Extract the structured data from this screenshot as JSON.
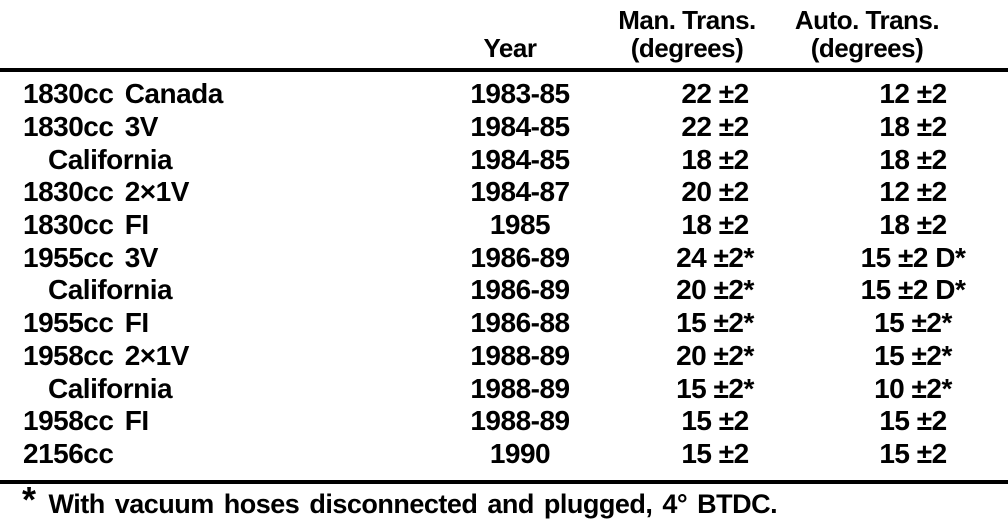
{
  "colors": {
    "text": "#000000",
    "background": "#ffffff",
    "rule": "#000000"
  },
  "table": {
    "headers": {
      "model": "",
      "year": "Year",
      "man_trans_line1": "Man. Trans.",
      "man_trans_line2": "(degrees)",
      "auto_trans_line1": "Auto. Trans.",
      "auto_trans_line2": "(degrees)"
    },
    "rows": [
      {
        "model": "1830cc Canada",
        "indent": false,
        "year": "1983-85",
        "man": "22 ±2",
        "auto": "12 ±2"
      },
      {
        "model": "1830cc 3V",
        "indent": false,
        "year": "1984-85",
        "man": "22 ±2",
        "auto": "18 ±2"
      },
      {
        "model": "California",
        "indent": true,
        "year": "1984-85",
        "man": "18 ±2",
        "auto": "18 ±2"
      },
      {
        "model": "1830cc 2×1V",
        "indent": false,
        "year": "1984-87",
        "man": "20 ±2",
        "auto": "12 ±2"
      },
      {
        "model": "1830cc FI",
        "indent": false,
        "year": "1985",
        "man": "18 ±2",
        "auto": "18 ±2"
      },
      {
        "model": "1955cc 3V",
        "indent": false,
        "year": "1986-89",
        "man": "24 ±2*",
        "auto": "15 ±2 D*"
      },
      {
        "model": "California",
        "indent": true,
        "year": "1986-89",
        "man": "20 ±2*",
        "auto": "15 ±2 D*"
      },
      {
        "model": "1955cc FI",
        "indent": false,
        "year": "1986-88",
        "man": "15 ±2*",
        "auto": "15 ±2*"
      },
      {
        "model": "1958cc 2×1V",
        "indent": false,
        "year": "1988-89",
        "man": "20 ±2*",
        "auto": "15 ±2*"
      },
      {
        "model": "California",
        "indent": true,
        "year": "1988-89",
        "man": "15 ±2*",
        "auto": "10 ±2*"
      },
      {
        "model": "1958cc FI",
        "indent": false,
        "year": "1988-89",
        "man": "15 ±2",
        "auto": "15 ±2"
      },
      {
        "model": "2156cc",
        "indent": false,
        "year": "1990",
        "man": "15 ±2",
        "auto": "15 ±2"
      }
    ],
    "footnote": {
      "marker": "*",
      "text": "With vacuum hoses disconnected and plugged, 4° BTDC."
    }
  }
}
